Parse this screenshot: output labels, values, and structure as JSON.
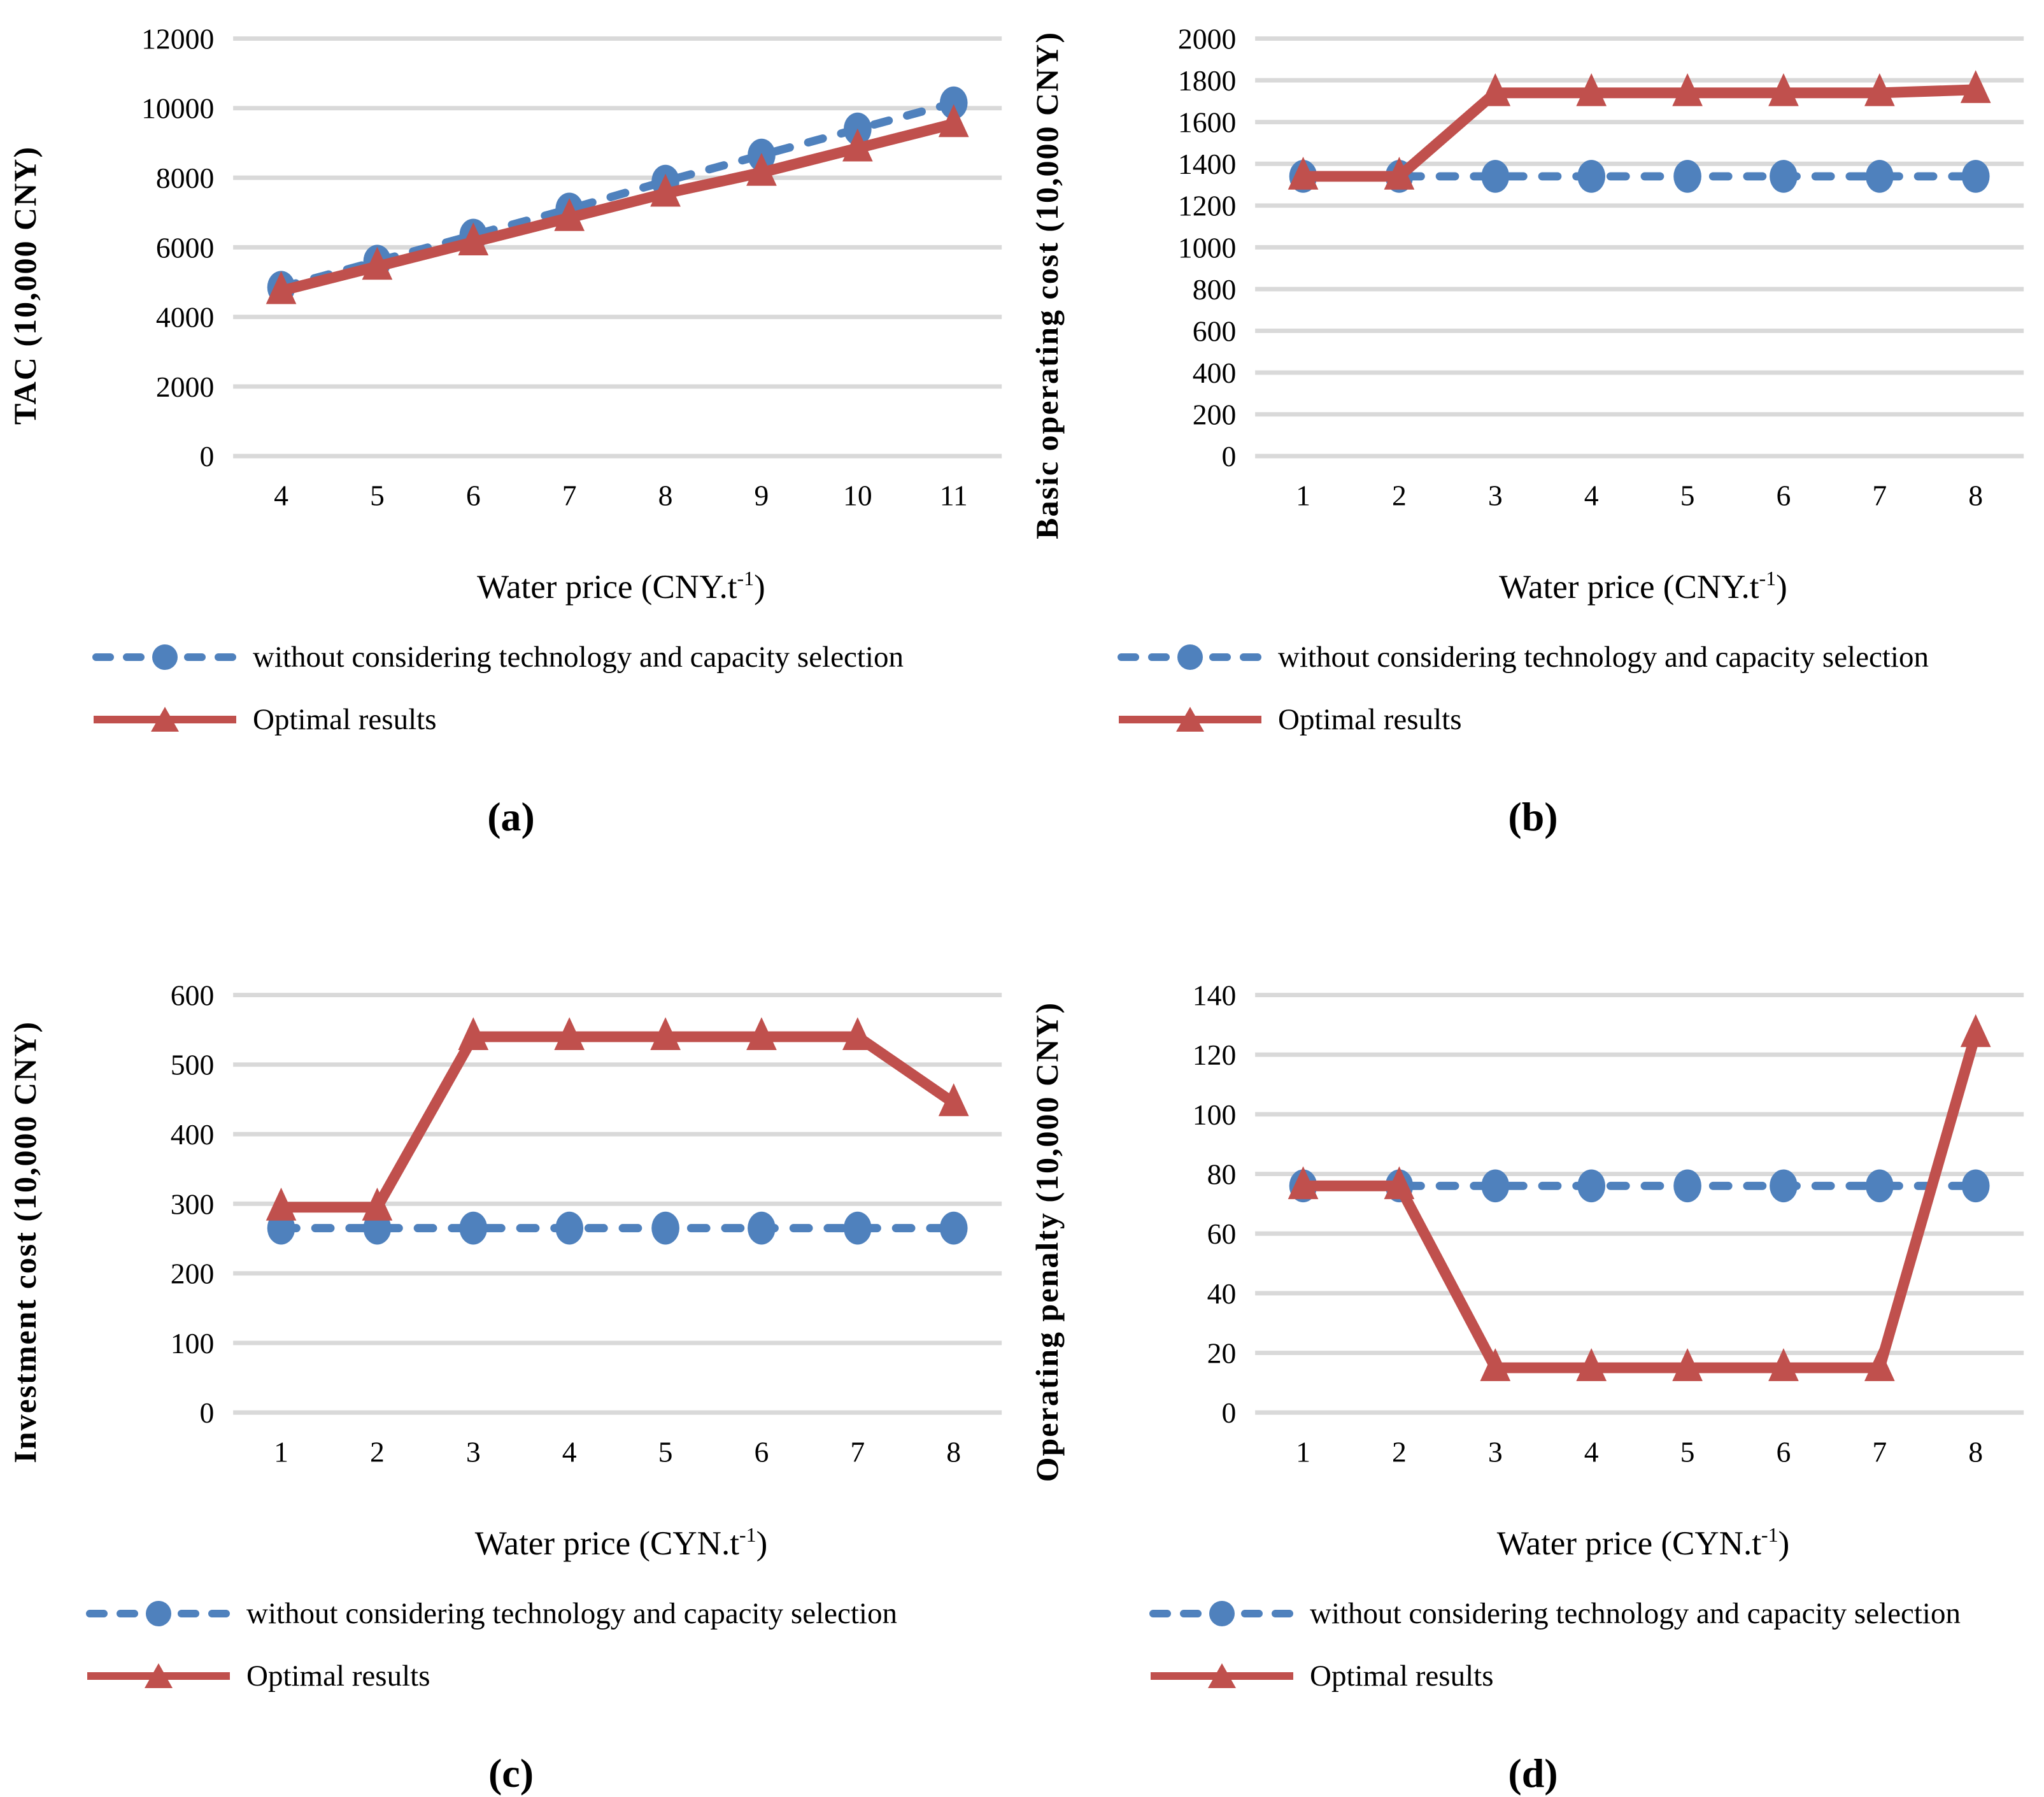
{
  "page": {
    "background": "#FFFFFF"
  },
  "colors": {
    "blue": "#4F81BD",
    "red": "#C0504D",
    "gridline": "#D9D9D9",
    "text": "#000000"
  },
  "legend": {
    "baseline_label": "without considering technology and capacity selection",
    "optimal_label": "Optimal results"
  },
  "chart_data": [
    {
      "type": "line",
      "caption": "(a)",
      "ylabel": "TAC (10,000 CNY)",
      "xlabel_pre": "Water price (CNY.t",
      "xlabel_sup": "-1",
      "xlabel_post": ")",
      "xlabel": "Water price (CNY.t-1)",
      "x": [
        "4",
        "5",
        "6",
        "7",
        "8",
        "9",
        "10",
        "11"
      ],
      "ylim": [
        0,
        12000
      ],
      "yticks": [
        0,
        2000,
        4000,
        6000,
        8000,
        10000,
        12000
      ],
      "grid": true,
      "legend_position": "below-left",
      "series": [
        {
          "name": "without considering technology and capacity selection",
          "color": "#4F81BD",
          "style": "dashed",
          "marker": "circle",
          "values": [
            4850,
            5600,
            6350,
            7100,
            7900,
            8650,
            9400,
            10150
          ]
        },
        {
          "name": "Optimal results",
          "color": "#C0504D",
          "style": "solid",
          "marker": "triangle",
          "values": [
            4750,
            5450,
            6150,
            6850,
            7550,
            8150,
            8850,
            9550
          ]
        }
      ]
    },
    {
      "type": "line",
      "caption": "(b)",
      "ylabel": "Basic operating cost (10,000 CNY)",
      "xlabel_pre": "Water price (CNY.t",
      "xlabel_sup": "-1",
      "xlabel_post": ")",
      "xlabel": "Water price (CNY.t-1)",
      "x": [
        "1",
        "2",
        "3",
        "4",
        "5",
        "6",
        "7",
        "8"
      ],
      "ylim": [
        0,
        2000
      ],
      "yticks": [
        0,
        200,
        400,
        600,
        800,
        1000,
        1200,
        1400,
        1600,
        1800,
        2000
      ],
      "grid": true,
      "legend_position": "below-left",
      "series": [
        {
          "name": "without considering technology and capacity selection",
          "color": "#4F81BD",
          "style": "dashed",
          "marker": "circle",
          "values": [
            1340,
            1340,
            1340,
            1340,
            1340,
            1340,
            1340,
            1340
          ]
        },
        {
          "name": "Optimal results",
          "color": "#C0504D",
          "style": "solid",
          "marker": "triangle",
          "values": [
            1340,
            1340,
            1740,
            1740,
            1740,
            1740,
            1740,
            1755
          ]
        }
      ]
    },
    {
      "type": "line",
      "caption": "(c)",
      "ylabel": "Investment cost (10,000 CNY)",
      "xlabel_pre": "Water price (CYN.t",
      "xlabel_sup": "-1",
      "xlabel_post": ")",
      "xlabel": "Water price (CYN.t-1)",
      "x": [
        "1",
        "2",
        "3",
        "4",
        "5",
        "6",
        "7",
        "8"
      ],
      "ylim": [
        0,
        600
      ],
      "yticks": [
        0,
        100,
        200,
        300,
        400,
        500,
        600
      ],
      "grid": true,
      "legend_position": "below-left",
      "series": [
        {
          "name": "without considering technology and capacity selection",
          "color": "#4F81BD",
          "style": "dashed",
          "marker": "circle",
          "values": [
            265,
            265,
            265,
            265,
            265,
            265,
            265,
            265
          ]
        },
        {
          "name": "Optimal results",
          "color": "#C0504D",
          "style": "solid",
          "marker": "triangle",
          "values": [
            295,
            295,
            540,
            540,
            540,
            540,
            540,
            445
          ]
        }
      ]
    },
    {
      "type": "line",
      "caption": "(d)",
      "ylabel": "Operating penalty (10,000 CNY)",
      "xlabel_pre": "Water price (CYN.t",
      "xlabel_sup": "-1",
      "xlabel_post": ")",
      "xlabel": "Water price (CYN.t-1)",
      "x": [
        "1",
        "2",
        "3",
        "4",
        "5",
        "6",
        "7",
        "8"
      ],
      "ylim": [
        0,
        140
      ],
      "yticks": [
        0,
        20,
        40,
        60,
        80,
        100,
        120,
        140
      ],
      "grid": true,
      "legend_position": "below-left",
      "series": [
        {
          "name": "without considering technology and capacity selection",
          "color": "#4F81BD",
          "style": "dashed",
          "marker": "circle",
          "values": [
            76,
            76,
            76,
            76,
            76,
            76,
            76,
            76
          ]
        },
        {
          "name": "Optimal results",
          "color": "#C0504D",
          "style": "solid",
          "marker": "triangle",
          "values": [
            76,
            76,
            15,
            15,
            15,
            15,
            15,
            127
          ]
        }
      ]
    }
  ]
}
